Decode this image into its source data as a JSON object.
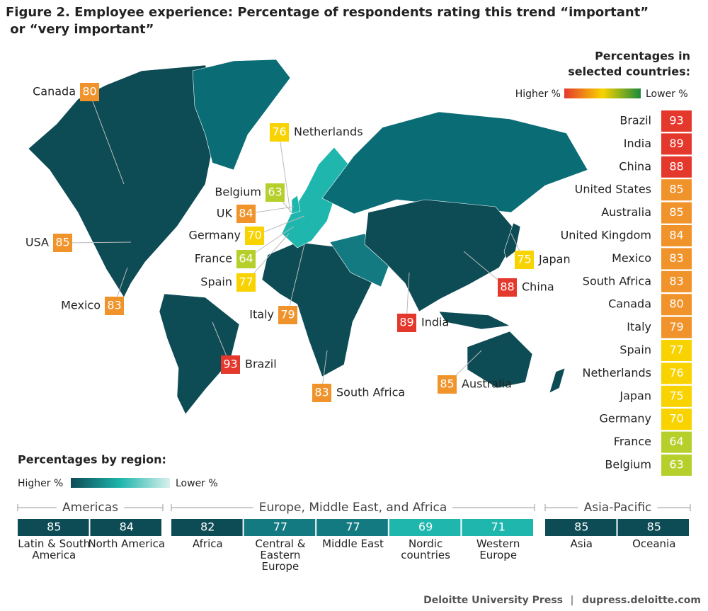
{
  "title": [
    "Figure 2. Employee experience: Percentage of respondents rating this trend “important”",
    " or “very important”"
  ],
  "countries_heading": [
    "Percentages in",
    "selected countries:"
  ],
  "countries_legend": {
    "high": "Higher %",
    "low": "Lower %"
  },
  "countries": [
    {
      "name": "Brazil",
      "value": 93,
      "color": "#e5382d"
    },
    {
      "name": "India",
      "value": 89,
      "color": "#e5382d"
    },
    {
      "name": "China",
      "value": 88,
      "color": "#e5382d"
    },
    {
      "name": "United States",
      "value": 85,
      "color": "#f0932b"
    },
    {
      "name": "Australia",
      "value": 85,
      "color": "#f0932b"
    },
    {
      "name": "United Kingdom",
      "value": 84,
      "color": "#f0932b"
    },
    {
      "name": "Mexico",
      "value": 83,
      "color": "#f0932b"
    },
    {
      "name": "South Africa",
      "value": 83,
      "color": "#f0932b"
    },
    {
      "name": "Canada",
      "value": 80,
      "color": "#f0932b"
    },
    {
      "name": "Italy",
      "value": 79,
      "color": "#f0932b"
    },
    {
      "name": "Spain",
      "value": 77,
      "color": "#f8d300"
    },
    {
      "name": "Netherlands",
      "value": 76,
      "color": "#f8d300"
    },
    {
      "name": "Japan",
      "value": 75,
      "color": "#f8d300"
    },
    {
      "name": "Germany",
      "value": 70,
      "color": "#f8d300"
    },
    {
      "name": "France",
      "value": 64,
      "color": "#b7cf2b"
    },
    {
      "name": "Belgium",
      "value": 63,
      "color": "#b7cf2b"
    }
  ],
  "map_labels": [
    {
      "name": "Canada",
      "value": 80,
      "color": "#f0932b"
    },
    {
      "name": "Netherlands",
      "value": 76,
      "color": "#f8d300"
    },
    {
      "name": "Belgium",
      "value": 63,
      "color": "#b7cf2b"
    },
    {
      "name": "UK",
      "value": 84,
      "color": "#f0932b"
    },
    {
      "name": "Germany",
      "value": 70,
      "color": "#f8d300"
    },
    {
      "name": "France",
      "value": 64,
      "color": "#b7cf2b"
    },
    {
      "name": "Spain",
      "value": 77,
      "color": "#f8d300"
    },
    {
      "name": "USA",
      "value": 85,
      "color": "#f0932b"
    },
    {
      "name": "Mexico",
      "value": 83,
      "color": "#f0932b"
    },
    {
      "name": "Italy",
      "value": 79,
      "color": "#f0932b"
    },
    {
      "name": "Brazil",
      "value": 93,
      "color": "#e5382d"
    },
    {
      "name": "South Africa",
      "value": 83,
      "color": "#f0932b"
    },
    {
      "name": "Australia",
      "value": 85,
      "color": "#f0932b"
    },
    {
      "name": "India",
      "value": 89,
      "color": "#e5382d"
    },
    {
      "name": "China",
      "value": 88,
      "color": "#e5382d"
    },
    {
      "name": "Japan",
      "value": 75,
      "color": "#f8d300"
    }
  ],
  "regions_heading": "Percentages by region:",
  "regions_legend": {
    "high": "Higher %",
    "low": "Lower %"
  },
  "region_groups": [
    {
      "name": "Americas",
      "regions": [
        {
          "name": "Latin & South America",
          "value": 85,
          "color": "#0d4b55"
        },
        {
          "name": "North America",
          "value": 84,
          "color": "#0d4b55"
        }
      ]
    },
    {
      "name": "Europe, Middle East, and Africa",
      "regions": [
        {
          "name": "Africa",
          "value": 82,
          "color": "#0d4b55"
        },
        {
          "name": "Central & Eastern Europe",
          "value": 77,
          "color": "#137a81"
        },
        {
          "name": "Middle East",
          "value": 77,
          "color": "#137a81"
        },
        {
          "name": "Nordic countries",
          "value": 69,
          "color": "#1eb6ad"
        },
        {
          "name": "Western Europe",
          "value": 71,
          "color": "#1eb6ad"
        }
      ]
    },
    {
      "name": "Asia-Pacific",
      "regions": [
        {
          "name": "Asia",
          "value": 85,
          "color": "#0d4b55"
        },
        {
          "name": "Oceania",
          "value": 85,
          "color": "#0d4b55"
        }
      ]
    }
  ],
  "footer": {
    "publisher": "Deloitte University Press",
    "url": "dupress.deloitte.com"
  }
}
